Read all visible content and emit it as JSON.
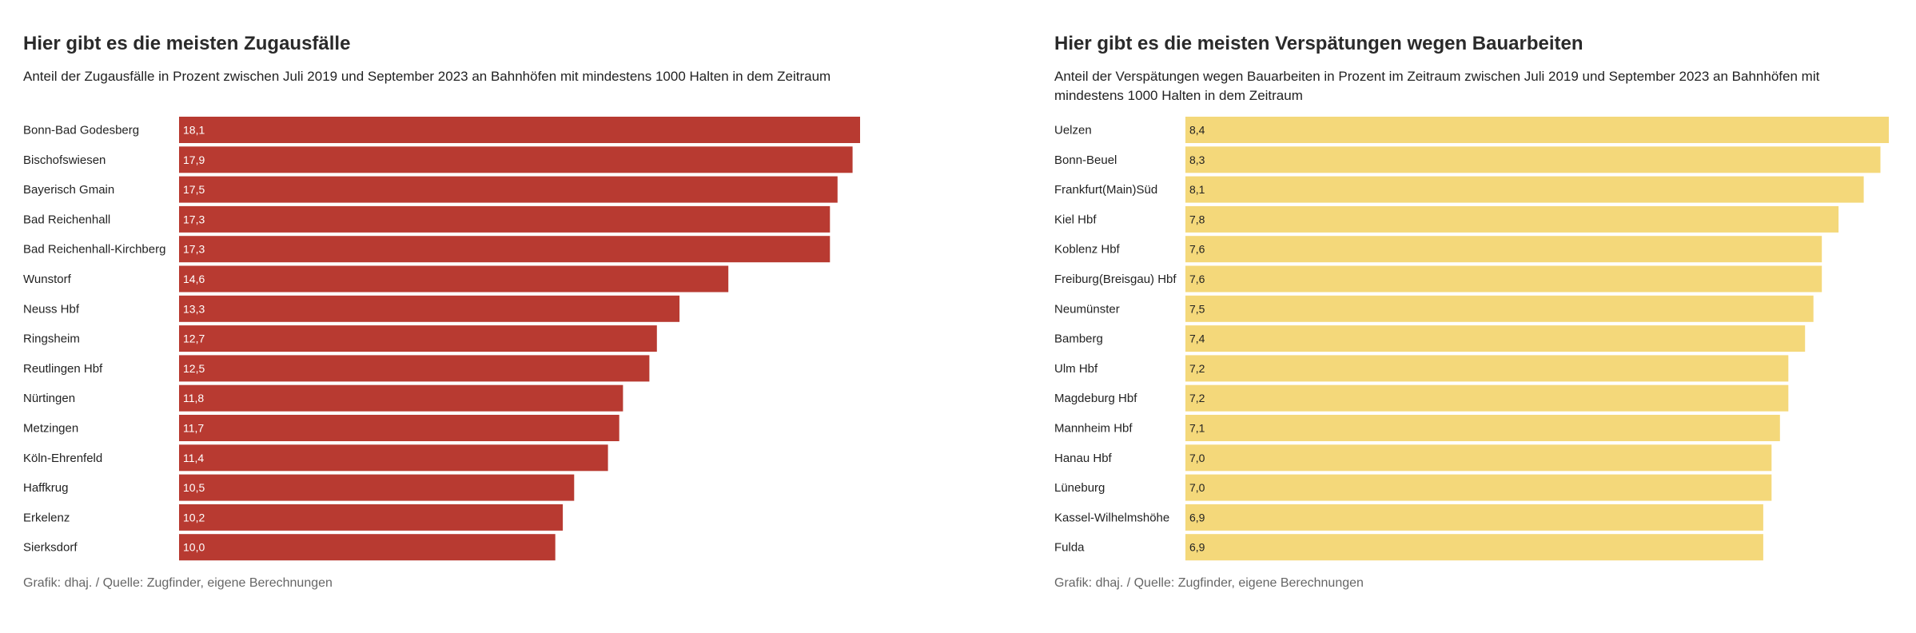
{
  "chart_data": [
    {
      "type": "bar",
      "orientation": "horizontal",
      "title": "Hier gibt es die meisten Zugausfälle",
      "subtitle": "Anteil der Zugausfälle in Prozent zwischen Juli 2019 und September 2023 an Bahnhöfen mit mindestens 1000 Halten in dem Zeitraum",
      "source": "Grafik: dhaj. / Quelle: Zugfinder, eigene Berechnungen",
      "categories": [
        "Bonn-Bad Godesberg",
        "Bischofswiesen",
        "Bayerisch Gmain",
        "Bad Reichenhall",
        "Bad Reichenhall-Kirchberg",
        "Wunstorf",
        "Neuss Hbf",
        "Ringsheim",
        "Reutlingen Hbf",
        "Nürtingen",
        "Metzingen",
        "Köln-Ehrenfeld",
        "Haffkrug",
        "Erkelenz",
        "Sierksdorf"
      ],
      "values": [
        18.1,
        17.9,
        17.5,
        17.3,
        17.3,
        14.6,
        13.3,
        12.7,
        12.5,
        11.8,
        11.7,
        11.4,
        10.5,
        10.2,
        10.0
      ],
      "value_labels": [
        "18,1",
        "17,9",
        "17,5",
        "17,3",
        "17,3",
        "14,6",
        "13,3",
        "12,7",
        "12,5",
        "11,8",
        "11,7",
        "11,4",
        "10,5",
        "10,2",
        "10,0"
      ],
      "bar_color": "#b83a31",
      "value_label_color": "#ffffff",
      "xlim": [
        0,
        18.1
      ],
      "grid": false
    },
    {
      "type": "bar",
      "orientation": "horizontal",
      "title": "Hier gibt es die meisten Verspätungen wegen Bauarbeiten",
      "subtitle": "Anteil der Verspätungen wegen Bauarbeiten in Prozent im Zeitraum zwischen Juli 2019 und September 2023 an Bahnhöfen mit mindestens 1000 Halten in dem Zeitraum",
      "source": "Grafik: dhaj. / Quelle: Zugfinder, eigene Berechnungen",
      "categories": [
        "Uelzen",
        "Bonn-Beuel",
        "Frankfurt(Main)Süd",
        "Kiel Hbf",
        "Koblenz Hbf",
        "Freiburg(Breisgau) Hbf",
        "Neumünster",
        "Bamberg",
        "Ulm Hbf",
        "Magdeburg Hbf",
        "Mannheim Hbf",
        "Hanau Hbf",
        "Lüneburg",
        "Kassel-Wilhelmshöhe",
        "Fulda"
      ],
      "values": [
        8.4,
        8.3,
        8.1,
        7.8,
        7.6,
        7.6,
        7.5,
        7.4,
        7.2,
        7.2,
        7.1,
        7.0,
        7.0,
        6.9,
        6.9
      ],
      "value_labels": [
        "8,4",
        "8,3",
        "8,1",
        "7,8",
        "7,6",
        "7,6",
        "7,5",
        "7,4",
        "7,2",
        "7,2",
        "7,1",
        "7,0",
        "7,0",
        "6,9",
        "6,9"
      ],
      "bar_color": "#f4d87a",
      "value_label_color": "#222222",
      "xlim": [
        0,
        8.4
      ],
      "grid": false
    }
  ]
}
